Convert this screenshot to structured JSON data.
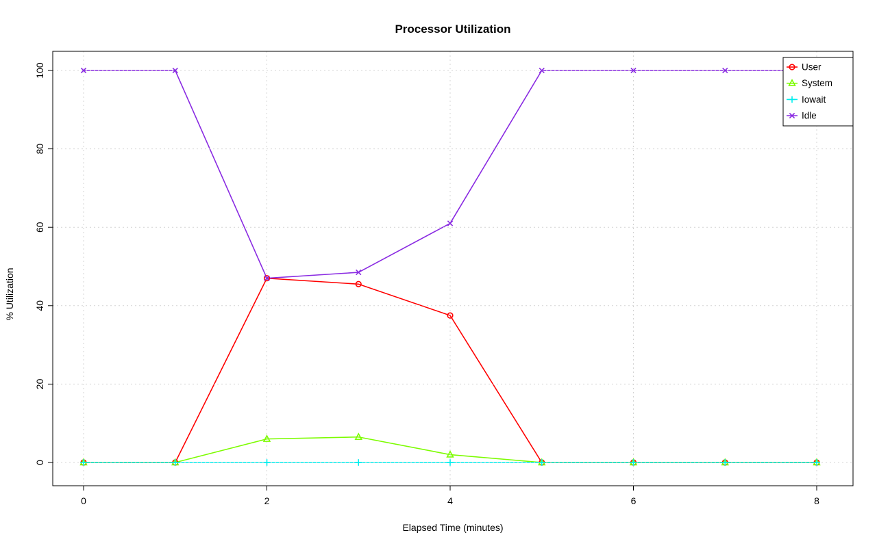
{
  "chart_data": {
    "type": "line",
    "title": "Processor Utilization",
    "xlabel": "Elapsed Time (minutes)",
    "ylabel": "% Utilization",
    "x": [
      0,
      1,
      2,
      3,
      4,
      5,
      6,
      7,
      8
    ],
    "xticks": [
      0,
      2,
      4,
      6,
      8
    ],
    "yticks": [
      0,
      20,
      40,
      60,
      80,
      100
    ],
    "xlim": [
      0,
      8
    ],
    "ylim": [
      0,
      100
    ],
    "grid": true,
    "grid_style": "dotted",
    "legend_position": "top-right",
    "colors": {
      "user": "#ff0000",
      "system": "#7cfc00",
      "iowait": "#00eeee",
      "idle": "#8a2be2",
      "grid": "#d4d4d4",
      "axis": "#000000"
    },
    "series": [
      {
        "name": "User",
        "color": "#ff0000",
        "marker": "circle",
        "values": [
          0,
          0,
          47,
          45.5,
          37.5,
          0,
          0,
          0,
          0
        ]
      },
      {
        "name": "System",
        "color": "#7cfc00",
        "marker": "triangle",
        "values": [
          0,
          0,
          6,
          6.5,
          2,
          0,
          0,
          0,
          0
        ]
      },
      {
        "name": "Iowait",
        "color": "#00eeee",
        "marker": "plus",
        "values": [
          0,
          0,
          0,
          0,
          0,
          0,
          0,
          0,
          0
        ]
      },
      {
        "name": "Idle",
        "color": "#8a2be2",
        "marker": "x",
        "values": [
          100,
          100,
          47,
          48.5,
          61,
          100,
          100,
          100,
          100
        ]
      }
    ]
  }
}
